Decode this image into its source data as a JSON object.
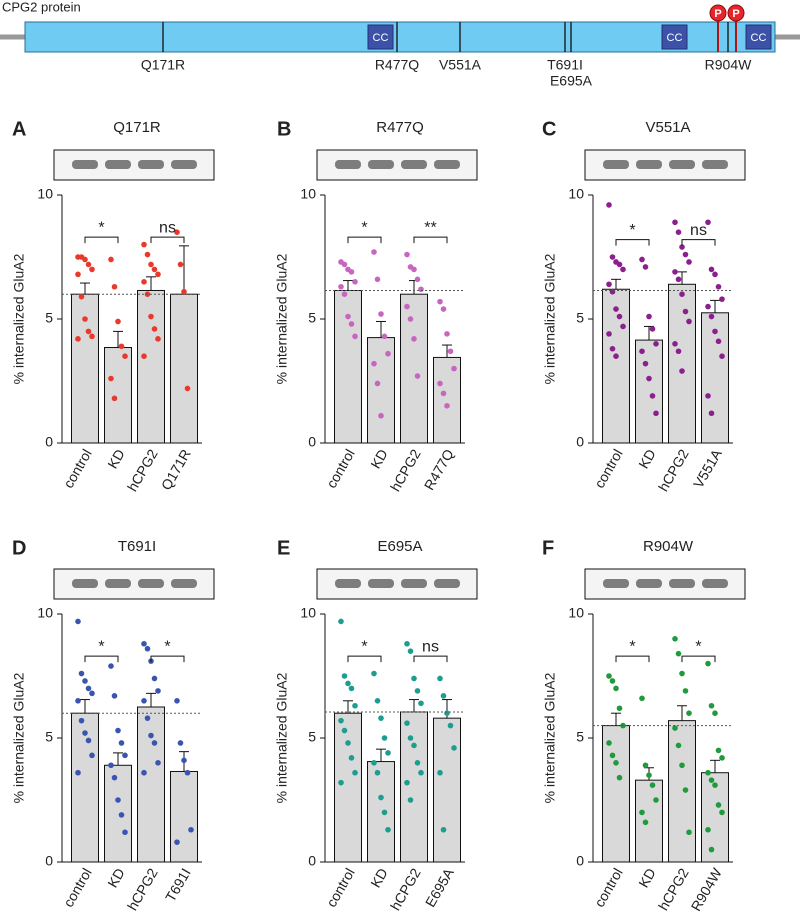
{
  "protein": {
    "title": "CPG2 protein",
    "domains": [
      "CC",
      "CC",
      "CC"
    ],
    "phospho": [
      "P",
      "P"
    ],
    "mutations": [
      "Q171R",
      "R477Q",
      "V551A",
      "T691I",
      "E695A",
      "R904W"
    ]
  },
  "chart_data": [
    {
      "type": "bar",
      "label": "A",
      "title": "Q171R",
      "ylabel": "% internalized GluA2",
      "color": "#e8392b",
      "categories": [
        "control",
        "KD",
        "hCPG2",
        "Q171R"
      ],
      "values": [
        6.0,
        3.85,
        6.15,
        6.0
      ],
      "errors": [
        0.45,
        0.65,
        0.55,
        1.95
      ],
      "points": [
        [
          7.5,
          7.5,
          7.4,
          7.2,
          7.0,
          6.8,
          5.9,
          5.0,
          4.5,
          4.3,
          4.2
        ],
        [
          7.4,
          6.3,
          4.9,
          3.9,
          3.5,
          2.6,
          1.8
        ],
        [
          8.0,
          7.6,
          7.2,
          7.0,
          6.8,
          6.5,
          6.0,
          5.1,
          4.6,
          4.2,
          3.5
        ],
        [
          8.5,
          7.2,
          6.1,
          2.2
        ]
      ],
      "ylim": [
        0,
        10
      ],
      "yticks": [
        0,
        5,
        10
      ],
      "reference_line": 6.0,
      "significance": [
        {
          "pair": [
            0,
            1
          ],
          "y": 8.3,
          "label": "*"
        },
        {
          "pair": [
            2,
            3
          ],
          "y": 8.3,
          "label": "ns"
        }
      ]
    },
    {
      "type": "bar",
      "label": "B",
      "title": "R477Q",
      "ylabel": "% internalized GluA2",
      "color": "#c865c0",
      "categories": [
        "control",
        "KD",
        "hCPG2",
        "R477Q"
      ],
      "values": [
        6.15,
        4.25,
        6.0,
        3.45
      ],
      "errors": [
        0.4,
        0.65,
        0.55,
        0.5
      ],
      "points": [
        [
          7.3,
          7.2,
          7.0,
          6.9,
          6.5,
          6.3,
          6.0,
          5.1,
          4.8,
          4.3
        ],
        [
          7.7,
          6.6,
          5.2,
          4.3,
          3.6,
          3.2,
          2.4,
          1.1
        ],
        [
          7.6,
          7.1,
          7.0,
          6.6,
          6.2,
          5.5,
          5.0,
          4.2,
          2.7
        ],
        [
          5.7,
          5.4,
          4.4,
          3.7,
          3.0,
          2.4,
          2.0,
          1.5
        ]
      ],
      "ylim": [
        0,
        10
      ],
      "yticks": [
        0,
        5,
        10
      ],
      "reference_line": 6.15,
      "significance": [
        {
          "pair": [
            0,
            1
          ],
          "y": 8.3,
          "label": "*"
        },
        {
          "pair": [
            2,
            3
          ],
          "y": 8.3,
          "label": "**"
        }
      ]
    },
    {
      "type": "bar",
      "label": "C",
      "title": "V551A",
      "ylabel": "% internalized GluA2",
      "color": "#8b1f8e",
      "categories": [
        "control",
        "KD",
        "hCPG2",
        "V551A"
      ],
      "values": [
        6.2,
        4.15,
        6.4,
        5.25
      ],
      "errors": [
        0.4,
        0.55,
        0.5,
        0.5
      ],
      "points": [
        [
          9.6,
          7.5,
          7.3,
          7.2,
          7.0,
          6.4,
          6.1,
          5.4,
          5.1,
          4.7,
          4.4,
          3.8,
          3.5
        ],
        [
          7.4,
          7.1,
          5.1,
          4.6,
          4.0,
          3.7,
          3.2,
          2.6,
          1.9,
          1.2
        ],
        [
          8.9,
          8.5,
          7.9,
          7.6,
          7.3,
          6.9,
          6.6,
          6.0,
          5.3,
          4.9,
          4.0,
          3.7,
          2.9
        ],
        [
          8.9,
          7.0,
          6.8,
          6.3,
          5.8,
          5.5,
          5.1,
          4.5,
          4.1,
          3.5,
          1.9,
          1.2
        ]
      ],
      "ylim": [
        0,
        10
      ],
      "yticks": [
        0,
        5,
        10
      ],
      "reference_line": 6.15,
      "significance": [
        {
          "pair": [
            0,
            1
          ],
          "y": 8.2,
          "label": "*"
        },
        {
          "pair": [
            2,
            3
          ],
          "y": 8.2,
          "label": "ns"
        }
      ]
    },
    {
      "type": "bar",
      "label": "D",
      "title": "T691I",
      "ylabel": "% internalized GluA2",
      "color": "#3a55b0",
      "categories": [
        "control",
        "KD",
        "hCPG2",
        "T691I"
      ],
      "values": [
        6.0,
        3.9,
        6.25,
        3.65
      ],
      "errors": [
        0.55,
        0.5,
        0.55,
        0.8
      ],
      "points": [
        [
          9.7,
          7.6,
          7.3,
          7.0,
          6.8,
          6.5,
          5.7,
          5.2,
          4.9,
          4.3,
          3.6
        ],
        [
          7.9,
          6.7,
          5.3,
          4.8,
          4.3,
          3.9,
          3.4,
          2.5,
          1.9,
          1.2
        ],
        [
          8.8,
          8.6,
          8.1,
          7.4,
          6.9,
          6.5,
          5.8,
          5.1,
          4.8,
          4.0,
          3.6
        ],
        [
          6.5,
          4.8,
          4.1,
          3.6,
          1.3,
          0.8
        ]
      ],
      "ylim": [
        0,
        10
      ],
      "yticks": [
        0,
        5,
        10
      ],
      "reference_line": 6.0,
      "significance": [
        {
          "pair": [
            0,
            1
          ],
          "y": 8.3,
          "label": "*"
        },
        {
          "pair": [
            2,
            3
          ],
          "y": 8.3,
          "label": "*"
        }
      ]
    },
    {
      "type": "bar",
      "label": "E",
      "title": "E695A",
      "ylabel": "% internalized GluA2",
      "color": "#1b9d8f",
      "categories": [
        "control",
        "KD",
        "hCPG2",
        "E695A"
      ],
      "values": [
        6.0,
        4.05,
        6.05,
        5.8
      ],
      "errors": [
        0.5,
        0.5,
        0.5,
        0.75
      ],
      "points": [
        [
          9.7,
          7.5,
          7.2,
          7.0,
          6.3,
          5.7,
          5.3,
          4.8,
          4.2,
          3.6,
          3.2
        ],
        [
          7.6,
          6.5,
          5.8,
          5.0,
          4.4,
          4.0,
          3.6,
          2.6,
          2.0,
          1.3
        ],
        [
          8.8,
          8.5,
          7.4,
          6.9,
          6.4,
          5.6,
          5.0,
          4.7,
          4.0,
          3.6,
          3.2,
          2.5
        ],
        [
          7.4,
          6.7,
          6.0,
          5.5,
          4.6,
          3.6,
          1.3
        ]
      ],
      "ylim": [
        0,
        10
      ],
      "yticks": [
        0,
        5,
        10
      ],
      "reference_line": 6.05,
      "significance": [
        {
          "pair": [
            0,
            1
          ],
          "y": 8.3,
          "label": "*"
        },
        {
          "pair": [
            2,
            3
          ],
          "y": 8.3,
          "label": "ns"
        }
      ]
    },
    {
      "type": "bar",
      "label": "F",
      "title": "R904W",
      "ylabel": "% internalized GluA2",
      "color": "#1f9a3c",
      "categories": [
        "control",
        "KD",
        "hCPG2",
        "R904W"
      ],
      "values": [
        5.5,
        3.3,
        5.7,
        3.6
      ],
      "errors": [
        0.5,
        0.5,
        0.6,
        0.5
      ],
      "points": [
        [
          7.5,
          7.3,
          7.0,
          6.2,
          5.5,
          4.8,
          4.3,
          4.0,
          3.4
        ],
        [
          6.6,
          3.9,
          3.5,
          3.1,
          2.5,
          2.0,
          1.6
        ],
        [
          9.0,
          8.4,
          7.6,
          6.9,
          6.0,
          5.4,
          4.7,
          3.9,
          2.9,
          1.2
        ],
        [
          8.0,
          6.3,
          6.0,
          4.5,
          4.2,
          3.6,
          3.3,
          3.1,
          2.3,
          2.0,
          1.3,
          0.5
        ]
      ],
      "ylim": [
        0,
        10
      ],
      "yticks": [
        0,
        5,
        10
      ],
      "reference_line": 5.5,
      "significance": [
        {
          "pair": [
            0,
            1
          ],
          "y": 8.3,
          "label": "*"
        },
        {
          "pair": [
            2,
            3
          ],
          "y": 8.3,
          "label": "*"
        }
      ]
    }
  ]
}
